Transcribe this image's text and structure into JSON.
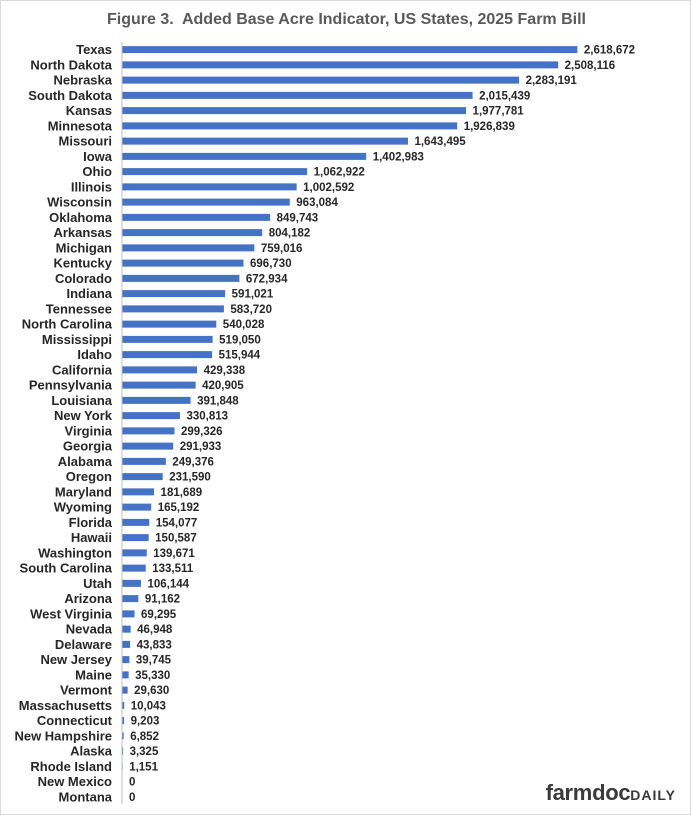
{
  "chart_data": {
    "type": "bar",
    "orientation": "horizontal",
    "title": "Figure 3.  Added Base Acre Indicator, US States, 2025 Farm Bill",
    "xlabel": "",
    "ylabel": "",
    "xlim": [
      0,
      2700000
    ],
    "grid": false,
    "bar_color": "#4472C4",
    "categories": [
      "Texas",
      "North Dakota",
      "Nebraska",
      "South Dakota",
      "Kansas",
      "Minnesota",
      "Missouri",
      "Iowa",
      "Ohio",
      "Illinois",
      "Wisconsin",
      "Oklahoma",
      "Arkansas",
      "Michigan",
      "Kentucky",
      "Colorado",
      "Indiana",
      "Tennessee",
      "North Carolina",
      "Mississippi",
      "Idaho",
      "California",
      "Pennsylvania",
      "Louisiana",
      "New York",
      "Virginia",
      "Georgia",
      "Alabama",
      "Oregon",
      "Maryland",
      "Wyoming",
      "Florida",
      "Hawaii",
      "Washington",
      "South Carolina",
      "Utah",
      "Arizona",
      "West Virginia",
      "Nevada",
      "Delaware",
      "New Jersey",
      "Maine",
      "Vermont",
      "Massachusetts",
      "Connecticut",
      "New Hampshire",
      "Alaska",
      "Rhode Island",
      "New Mexico",
      "Montana"
    ],
    "values": [
      2618672,
      2508116,
      2283191,
      2015439,
      1977781,
      1926839,
      1643495,
      1402983,
      1062922,
      1002592,
      963084,
      849743,
      804182,
      759016,
      696730,
      672934,
      591021,
      583720,
      540028,
      519050,
      515944,
      429338,
      420905,
      391848,
      330813,
      299326,
      291933,
      249376,
      231590,
      181689,
      165192,
      154077,
      150587,
      139671,
      133511,
      106144,
      91162,
      69295,
      46948,
      43833,
      39745,
      35330,
      29630,
      10043,
      9203,
      6852,
      3325,
      1151,
      0,
      0
    ],
    "value_labels": [
      "2,618,672",
      "2,508,116",
      "2,283,191",
      "2,015,439",
      "1,977,781",
      "1,926,839",
      "1,643,495",
      "1,402,983",
      "1,062,922",
      "1,002,592",
      "963,084",
      "849,743",
      "804,182",
      "759,016",
      "696,730",
      "672,934",
      "591,021",
      "583,720",
      "540,028",
      "519,050",
      "515,944",
      "429,338",
      "420,905",
      "391,848",
      "330,813",
      "299,326",
      "291,933",
      "249,376",
      "231,590",
      "181,689",
      "165,192",
      "154,077",
      "150,587",
      "139,671",
      "133,511",
      "106,144",
      "91,162",
      "69,295",
      "46,948",
      "43,833",
      "39,745",
      "35,330",
      "29,630",
      "10,043",
      "9,203",
      "6,852",
      "3,325",
      "1,151",
      "0",
      "0"
    ]
  },
  "brand": {
    "part1": "farmdoc",
    "part2": "DAILY"
  }
}
